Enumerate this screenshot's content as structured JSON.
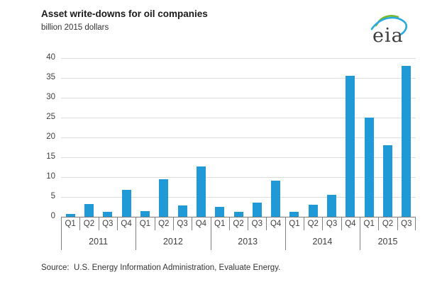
{
  "header": {
    "title": "Asset write-downs for oil companies",
    "subtitle": "billion 2015 dollars"
  },
  "logo": {
    "text": "eia"
  },
  "source_line": "Source:  U.S. Energy Information Administration, Evaluate Energy.",
  "colors": {
    "bar": "#1f9ad6",
    "gridline": "#dcdcdc",
    "axis": "#7f7f7f",
    "text": "#404040",
    "logo_green": "#76b82a",
    "logo_blue": "#2aa9e0"
  },
  "chart_data": {
    "type": "bar",
    "title": "Asset write-downs for oil companies",
    "ylabel": "billion 2015 dollars",
    "ylim": [
      0,
      40
    ],
    "ytick_step": 5,
    "grid": true,
    "legend": "none",
    "categories": [
      "Q1",
      "Q2",
      "Q3",
      "Q4",
      "Q1",
      "Q2",
      "Q3",
      "Q4",
      "Q1",
      "Q2",
      "Q3",
      "Q4",
      "Q1",
      "Q2",
      "Q3",
      "Q4",
      "Q1",
      "Q2",
      "Q3"
    ],
    "values": [
      0.8,
      3.2,
      1.3,
      6.8,
      1.4,
      9.5,
      2.9,
      12.6,
      2.5,
      1.2,
      3.5,
      9.1,
      1.2,
      3.0,
      5.5,
      35.5,
      25.0,
      18.0,
      38.0
    ],
    "year_groups": [
      {
        "year": "2011",
        "quarters": [
          "Q1",
          "Q2",
          "Q3",
          "Q4"
        ],
        "values": [
          0.8,
          3.2,
          1.3,
          6.8
        ]
      },
      {
        "year": "2012",
        "quarters": [
          "Q1",
          "Q2",
          "Q3",
          "Q4"
        ],
        "values": [
          1.4,
          9.5,
          2.9,
          12.6
        ]
      },
      {
        "year": "2013",
        "quarters": [
          "Q1",
          "Q2",
          "Q3",
          "Q4"
        ],
        "values": [
          2.5,
          1.2,
          3.5,
          9.1
        ]
      },
      {
        "year": "2014",
        "quarters": [
          "Q1",
          "Q2",
          "Q3",
          "Q4"
        ],
        "values": [
          1.2,
          3.0,
          5.5,
          35.5
        ]
      },
      {
        "year": "2015",
        "quarters": [
          "Q1",
          "Q2",
          "Q3"
        ],
        "values": [
          25.0,
          18.0,
          38.0
        ]
      }
    ]
  }
}
